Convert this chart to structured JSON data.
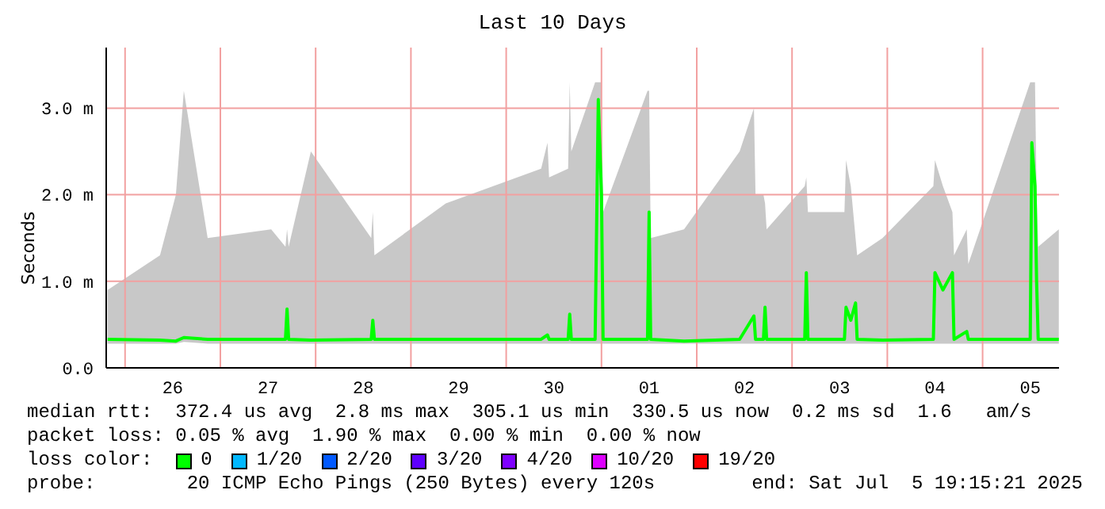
{
  "chart_data": {
    "type": "line",
    "title": "Last 10 Days",
    "ylabel": "Seconds",
    "legend_title": "loss color:",
    "legend": "bottom",
    "grid": true,
    "marker": "none",
    "line_style": "solid",
    "x": [
      "2025-06-25T19:36",
      "2025-06-26T08:48",
      "2025-06-26T12:48",
      "2025-06-26T14:48",
      "2025-06-26T20:48",
      "2025-06-27T12:48",
      "2025-06-27T16:24",
      "2025-06-27T16:48",
      "2025-06-27T17:12",
      "2025-06-27T22:48",
      "2025-06-28T14:00",
      "2025-06-28T14:24",
      "2025-06-28T14:48",
      "2025-06-29T08:48",
      "2025-06-30T08:48",
      "2025-06-30T10:24",
      "2025-06-30T10:48",
      "2025-06-30T15:36",
      "2025-06-30T16:00",
      "2025-06-30T16:24",
      "2025-06-30T22:24",
      "2025-06-30T23:12",
      "2025-07-01T00:00",
      "2025-07-01T00:24",
      "2025-07-01T11:36",
      "2025-07-01T12:00",
      "2025-07-01T12:24",
      "2025-07-01T20:48",
      "2025-07-02T10:48",
      "2025-07-02T14:24",
      "2025-07-02T14:48",
      "2025-07-02T16:48",
      "2025-07-02T17:12",
      "2025-07-02T17:36",
      "2025-07-03T03:12",
      "2025-07-03T03:36",
      "2025-07-03T04:00",
      "2025-07-03T13:12",
      "2025-07-03T13:36",
      "2025-07-03T14:48",
      "2025-07-03T16:00",
      "2025-07-03T16:24",
      "2025-07-03T22:48",
      "2025-07-04T11:36",
      "2025-07-04T12:00",
      "2025-07-04T14:00",
      "2025-07-04T16:24",
      "2025-07-04T16:48",
      "2025-07-04T20:00",
      "2025-07-04T20:24",
      "2025-07-05T12:00",
      "2025-07-05T12:24",
      "2025-07-05T13:12",
      "2025-07-05T13:36",
      "2025-07-05T14:00",
      "2025-07-05T19:12"
    ],
    "xlim": [
      "2025-06-25T19:15",
      "2025-07-05T19:15"
    ],
    "xticks": [
      {
        "value": "2025-06-26T00:00",
        "label": null
      },
      {
        "value": "2025-06-26T12:00",
        "label": "26"
      },
      {
        "value": "2025-06-27T00:00",
        "label": null
      },
      {
        "value": "2025-06-27T12:00",
        "label": "27"
      },
      {
        "value": "2025-06-28T00:00",
        "label": null
      },
      {
        "value": "2025-06-28T12:00",
        "label": "28"
      },
      {
        "value": "2025-06-29T00:00",
        "label": null
      },
      {
        "value": "2025-06-29T12:00",
        "label": "29"
      },
      {
        "value": "2025-06-30T00:00",
        "label": null
      },
      {
        "value": "2025-06-30T12:00",
        "label": "30"
      },
      {
        "value": "2025-07-01T00:00",
        "label": null
      },
      {
        "value": "2025-07-01T12:00",
        "label": "01"
      },
      {
        "value": "2025-07-02T00:00",
        "label": null
      },
      {
        "value": "2025-07-02T12:00",
        "label": "02"
      },
      {
        "value": "2025-07-03T00:00",
        "label": null
      },
      {
        "value": "2025-07-03T12:00",
        "label": "03"
      },
      {
        "value": "2025-07-04T00:00",
        "label": null
      },
      {
        "value": "2025-07-04T12:00",
        "label": "04"
      },
      {
        "value": "2025-07-05T00:00",
        "label": null
      },
      {
        "value": "2025-07-05T12:00",
        "label": "05"
      }
    ],
    "ylim": [
      0,
      3.7
    ],
    "yticks": [
      {
        "value": 0,
        "label": "0.0"
      },
      {
        "value": 1,
        "label": "1.0 m"
      },
      {
        "value": 2,
        "label": "2.0 m"
      },
      {
        "value": 3,
        "label": "3.0 m"
      }
    ],
    "series": [
      {
        "name": "0",
        "color": "#00ff00",
        "values": [
          0.33,
          0.32,
          0.31,
          0.35,
          0.33,
          0.33,
          0.33,
          0.68,
          0.33,
          0.32,
          0.33,
          0.55,
          0.33,
          0.33,
          0.33,
          0.38,
          0.33,
          0.33,
          0.62,
          0.33,
          0.33,
          3.1,
          2.0,
          0.33,
          0.33,
          1.8,
          0.33,
          0.31,
          0.33,
          0.6,
          0.33,
          0.33,
          0.7,
          0.33,
          0.33,
          1.1,
          0.33,
          0.33,
          0.7,
          0.55,
          0.75,
          0.33,
          0.32,
          0.33,
          1.1,
          0.9,
          1.1,
          0.33,
          0.42,
          0.33,
          0.33,
          2.6,
          2.1,
          1.0,
          0.33,
          0.33
        ],
        "lower": [
          0.28,
          0.28,
          0.28,
          0.3,
          0.28,
          0.28,
          0.28,
          0.28,
          0.28,
          0.28,
          0.28,
          0.28,
          0.28,
          0.28,
          0.28,
          0.28,
          0.28,
          0.28,
          0.28,
          0.28,
          0.28,
          0.28,
          0.28,
          0.28,
          0.28,
          0.28,
          0.28,
          0.28,
          0.28,
          0.28,
          0.28,
          0.28,
          0.28,
          0.28,
          0.28,
          0.28,
          0.28,
          0.28,
          0.28,
          0.28,
          0.28,
          0.28,
          0.28,
          0.28,
          0.28,
          0.28,
          0.28,
          0.28,
          0.28,
          0.28,
          0.28,
          0.28,
          0.28,
          0.28,
          0.28,
          0.28
        ],
        "upper": [
          0.9,
          1.3,
          2.0,
          3.2,
          1.5,
          1.6,
          1.4,
          1.6,
          1.4,
          2.5,
          1.5,
          1.8,
          1.3,
          1.9,
          2.3,
          2.6,
          2.2,
          2.3,
          3.3,
          2.5,
          3.3,
          3.3,
          3.3,
          1.8,
          3.2,
          3.2,
          1.5,
          1.6,
          2.5,
          3.0,
          2.0,
          2.0,
          1.9,
          1.6,
          2.1,
          2.2,
          1.8,
          1.8,
          2.4,
          2.1,
          1.5,
          1.3,
          1.5,
          2.1,
          2.4,
          2.1,
          1.8,
          1.3,
          1.6,
          1.2,
          3.3,
          3.3,
          3.3,
          2.0,
          1.4,
          1.6
        ]
      },
      {
        "name": "1/20",
        "color": "#00b8ff",
        "values": [
          null,
          null,
          null,
          null,
          null,
          null,
          null,
          null,
          null,
          null,
          null,
          null,
          null,
          null,
          null,
          null,
          null,
          null,
          null,
          null,
          null,
          null,
          null,
          null,
          null,
          null,
          null,
          null,
          null,
          null,
          null,
          null,
          null,
          null,
          null,
          null,
          null,
          null,
          null,
          null,
          null,
          null,
          null,
          null,
          null,
          null,
          null,
          null,
          null,
          null,
          null,
          null,
          null,
          null,
          null,
          null
        ]
      },
      {
        "name": "2/20",
        "color": "#0059ff",
        "values": [
          null,
          null,
          null,
          null,
          null,
          null,
          null,
          null,
          null,
          null,
          null,
          null,
          null,
          null,
          null,
          null,
          null,
          null,
          null,
          null,
          null,
          null,
          null,
          null,
          null,
          null,
          null,
          null,
          null,
          null,
          null,
          null,
          null,
          null,
          null,
          null,
          null,
          null,
          null,
          null,
          null,
          null,
          null,
          null,
          null,
          null,
          null,
          null,
          null,
          null,
          null,
          null,
          null,
          null,
          null,
          null
        ]
      },
      {
        "name": "3/20",
        "color": "#5e00ff",
        "values": [
          null,
          null,
          null,
          null,
          null,
          null,
          null,
          null,
          null,
          null,
          null,
          null,
          null,
          null,
          null,
          null,
          null,
          null,
          null,
          null,
          null,
          null,
          null,
          null,
          null,
          null,
          null,
          null,
          null,
          null,
          null,
          null,
          null,
          null,
          null,
          null,
          null,
          null,
          null,
          null,
          null,
          null,
          null,
          null,
          null,
          null,
          null,
          null,
          null,
          null,
          null,
          null,
          null,
          null,
          null,
          null
        ]
      },
      {
        "name": "4/20",
        "color": "#7e00ff",
        "values": [
          null,
          null,
          null,
          null,
          null,
          null,
          null,
          null,
          null,
          null,
          null,
          null,
          null,
          null,
          null,
          null,
          null,
          null,
          null,
          null,
          null,
          null,
          null,
          null,
          null,
          null,
          null,
          null,
          null,
          null,
          null,
          null,
          null,
          null,
          null,
          null,
          null,
          null,
          null,
          null,
          null,
          null,
          null,
          null,
          null,
          null,
          null,
          null,
          null,
          null,
          null,
          null,
          null,
          null,
          null,
          null
        ]
      },
      {
        "name": "10/20",
        "color": "#dd00ff",
        "values": [
          null,
          null,
          null,
          null,
          null,
          null,
          null,
          null,
          null,
          null,
          null,
          null,
          null,
          null,
          null,
          null,
          null,
          null,
          null,
          null,
          null,
          null,
          null,
          null,
          null,
          null,
          null,
          null,
          null,
          null,
          null,
          null,
          null,
          null,
          null,
          null,
          null,
          null,
          null,
          null,
          null,
          null,
          null,
          null,
          null,
          null,
          null,
          null,
          null,
          null,
          null,
          null,
          null,
          null,
          null,
          null
        ]
      },
      {
        "name": "19/20",
        "color": "#ff0000",
        "values": [
          null,
          null,
          null,
          null,
          null,
          null,
          null,
          null,
          null,
          null,
          null,
          null,
          null,
          null,
          null,
          null,
          null,
          null,
          null,
          null,
          null,
          null,
          null,
          null,
          null,
          null,
          null,
          null,
          null,
          null,
          null,
          null,
          null,
          null,
          null,
          null,
          null,
          null,
          null,
          null,
          null,
          null,
          null,
          null,
          null,
          null,
          null,
          null,
          null,
          null,
          null,
          null,
          null,
          null,
          null,
          null
        ]
      }
    ],
    "annotations": [
      "median rtt:  372.4 us avg  2.8 ms max  305.1 us min  330.5 us now  0.2 ms sd  1.6   am/s",
      "packet loss: 0.05 % avg  1.90 % max  0.00 % min  0.00 % now",
      "probe:        20 ICMP Echo Pings (250 Bytes) every 120s",
      "end: Sat Jul  5 19:15:21 2025"
    ]
  }
}
